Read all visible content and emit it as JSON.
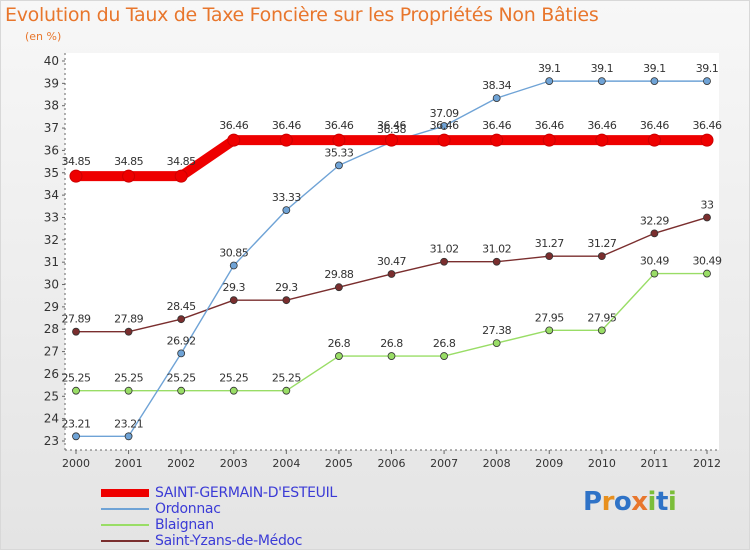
{
  "title": "Evolution du Taux de Taxe Foncière sur les Propriétés Non Bâties",
  "subtitle": "(en %)",
  "logo": "Proxiti",
  "chart_data": {
    "type": "line",
    "title": "Evolution du Taux de Taxe Foncière sur les Propriétés Non Bâties",
    "ylabel": "(en %)",
    "xlabel": "",
    "categories": [
      "2000",
      "2001",
      "2002",
      "2003",
      "2004",
      "2005",
      "2006",
      "2007",
      "2008",
      "2009",
      "2010",
      "2011",
      "2012"
    ],
    "ylim": [
      23,
      40
    ],
    "yticks": [
      23,
      24,
      25,
      26,
      27,
      28,
      29,
      30,
      31,
      32,
      33,
      34,
      35,
      36,
      37,
      38,
      39,
      40
    ],
    "grid": false,
    "legend": "bottom",
    "series": [
      {
        "name": "SAINT-GERMAIN-D'ESTEUIL",
        "color": "#ee0000",
        "values": [
          34.85,
          34.85,
          34.85,
          36.46,
          36.46,
          36.46,
          36.46,
          36.46,
          36.46,
          36.46,
          36.46,
          36.46,
          36.46
        ],
        "labels": [
          "34.85",
          "34.85",
          "34.85",
          "36.46",
          "36.46",
          "36.46",
          "36.46",
          "36.46",
          "36.46",
          "36.46",
          "36.46",
          "36.46",
          "36.46"
        ]
      },
      {
        "name": "Ordonnac",
        "color": "#6fa3d6",
        "values": [
          23.21,
          23.21,
          26.92,
          30.85,
          33.33,
          35.33,
          36.38,
          37.09,
          38.34,
          39.1,
          39.1,
          39.1,
          39.1
        ],
        "labels": [
          "23.21",
          "23.21",
          "26.92",
          "30.85",
          "33.33",
          "35.33",
          "36.38",
          "37.09",
          "38.34",
          "39.1",
          "39.1",
          "39.1",
          "39.1"
        ]
      },
      {
        "name": "Blaignan",
        "color": "#99dd66",
        "values": [
          25.25,
          25.25,
          25.25,
          25.25,
          25.25,
          26.8,
          26.8,
          26.8,
          27.38,
          27.95,
          27.95,
          30.49,
          30.49
        ],
        "labels": [
          "25.25",
          "25.25",
          "25.25",
          "25.25",
          "25.25",
          "26.8",
          "26.8",
          "26.8",
          "27.38",
          "27.95",
          "27.95",
          "30.49",
          "30.49"
        ]
      },
      {
        "name": "Saint-Yzans-de-Médoc",
        "color": "#7a2e2e",
        "values": [
          27.89,
          27.89,
          28.45,
          29.3,
          29.3,
          29.88,
          30.47,
          31.02,
          31.02,
          31.27,
          31.27,
          32.29,
          33
        ],
        "labels": [
          "27.89",
          "27.89",
          "28.45",
          "29.3",
          "29.3",
          "29.88",
          "30.47",
          "31.02",
          "31.02",
          "31.27",
          "31.27",
          "32.29",
          "33"
        ]
      }
    ]
  }
}
